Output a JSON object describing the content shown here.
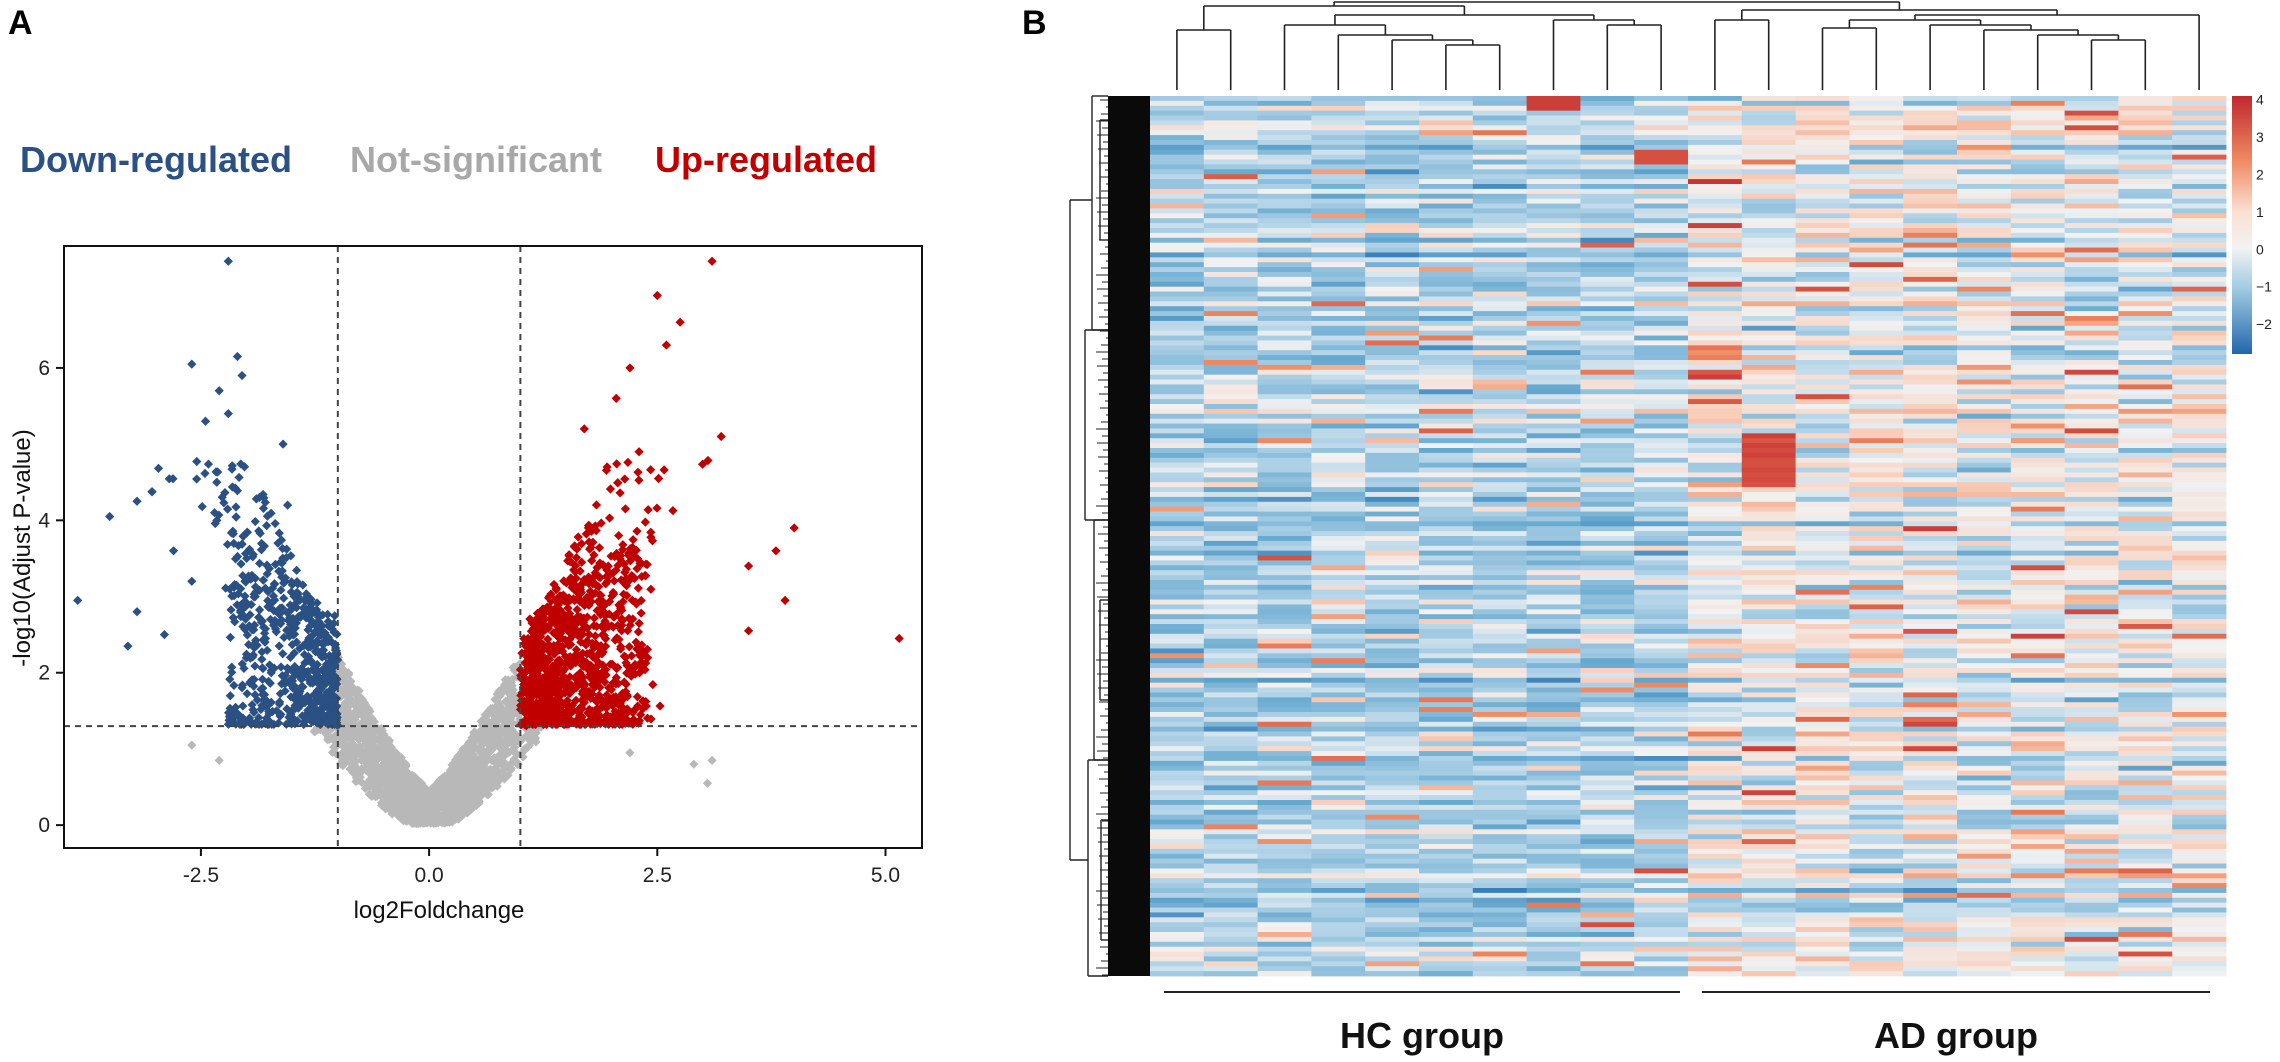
{
  "figure": {
    "panel_a_label": "A",
    "panel_b_label": "B"
  },
  "colors": {
    "down": "#2b5083",
    "up": "#c00000",
    "ns": "#b8b8b8",
    "heat_low": "#2166ac",
    "heat_mid": "#f7f7f7",
    "heat_high": "#c0282e"
  },
  "chart_data": [
    {
      "type": "scatter",
      "subtype": "volcano",
      "legend": [
        "Down-regulated",
        "Not-significant",
        "Up-regulated"
      ],
      "xlabel": "log2Foldchange",
      "ylabel": "-log10(Adjust P-value)",
      "xlim": [
        -4.0,
        5.4
      ],
      "ylim": [
        -0.3,
        7.6
      ],
      "xticks": [
        -2.5,
        0.0,
        2.5,
        5.0
      ],
      "xtick_labels": [
        "-2.5",
        "0.0",
        "2.5",
        "5.0"
      ],
      "yticks": [
        0,
        2,
        4,
        6
      ],
      "ytick_labels": [
        "0",
        "2",
        "4",
        "6"
      ],
      "thresholds": {
        "log2fc": [
          -1,
          1
        ],
        "neg_log10_padj": 1.3
      },
      "series": [
        {
          "name": "Down-regulated",
          "points": [
            [
              -2.2,
              7.4
            ],
            [
              -2.6,
              6.05
            ],
            [
              -2.1,
              6.15
            ],
            [
              -2.05,
              5.9
            ],
            [
              -2.3,
              5.7
            ],
            [
              -2.45,
              5.3
            ],
            [
              -2.2,
              5.4
            ],
            [
              -1.6,
              5.0
            ],
            [
              -3.2,
              4.25
            ],
            [
              -3.5,
              4.05
            ],
            [
              -3.85,
              2.95
            ],
            [
              -3.2,
              2.8
            ],
            [
              -3.3,
              2.35
            ],
            [
              -2.9,
              2.5
            ],
            [
              -2.8,
              3.6
            ],
            [
              -2.6,
              3.2
            ],
            [
              -2.35,
              4.1
            ],
            [
              -1.55,
              4.2
            ]
          ]
        },
        {
          "name": "Up-regulated",
          "points": [
            [
              3.1,
              7.4
            ],
            [
              2.5,
              6.95
            ],
            [
              2.75,
              6.6
            ],
            [
              2.6,
              6.3
            ],
            [
              2.2,
              6.0
            ],
            [
              2.05,
              5.6
            ],
            [
              1.7,
              5.2
            ],
            [
              3.2,
              5.1
            ],
            [
              4.0,
              3.9
            ],
            [
              3.8,
              3.6
            ],
            [
              3.5,
              3.4
            ],
            [
              3.9,
              2.95
            ],
            [
              3.5,
              2.55
            ],
            [
              5.15,
              2.45
            ],
            [
              2.3,
              4.9
            ],
            [
              1.95,
              4.7
            ]
          ]
        },
        {
          "name": "Not-significant",
          "points": [
            [
              -2.6,
              1.05
            ],
            [
              -2.3,
              0.85
            ],
            [
              2.2,
              0.95
            ],
            [
              2.9,
              0.8
            ],
            [
              3.1,
              0.85
            ],
            [
              3.05,
              0.55
            ]
          ]
        }
      ]
    },
    {
      "type": "heatmap",
      "rows_description": "clustered genes (dendrogram on left)",
      "column_groups": [
        {
          "name": "HC group",
          "columns": 10
        },
        {
          "name": "AD group",
          "columns": 10
        }
      ],
      "colorbar": {
        "min": -2.8,
        "max": 4.1,
        "ticks": [
          4,
          3,
          2,
          1,
          0,
          -1,
          -2
        ],
        "tick_labels": [
          "4",
          "3",
          "2",
          "1",
          "0",
          "−1",
          "−2"
        ]
      }
    }
  ]
}
